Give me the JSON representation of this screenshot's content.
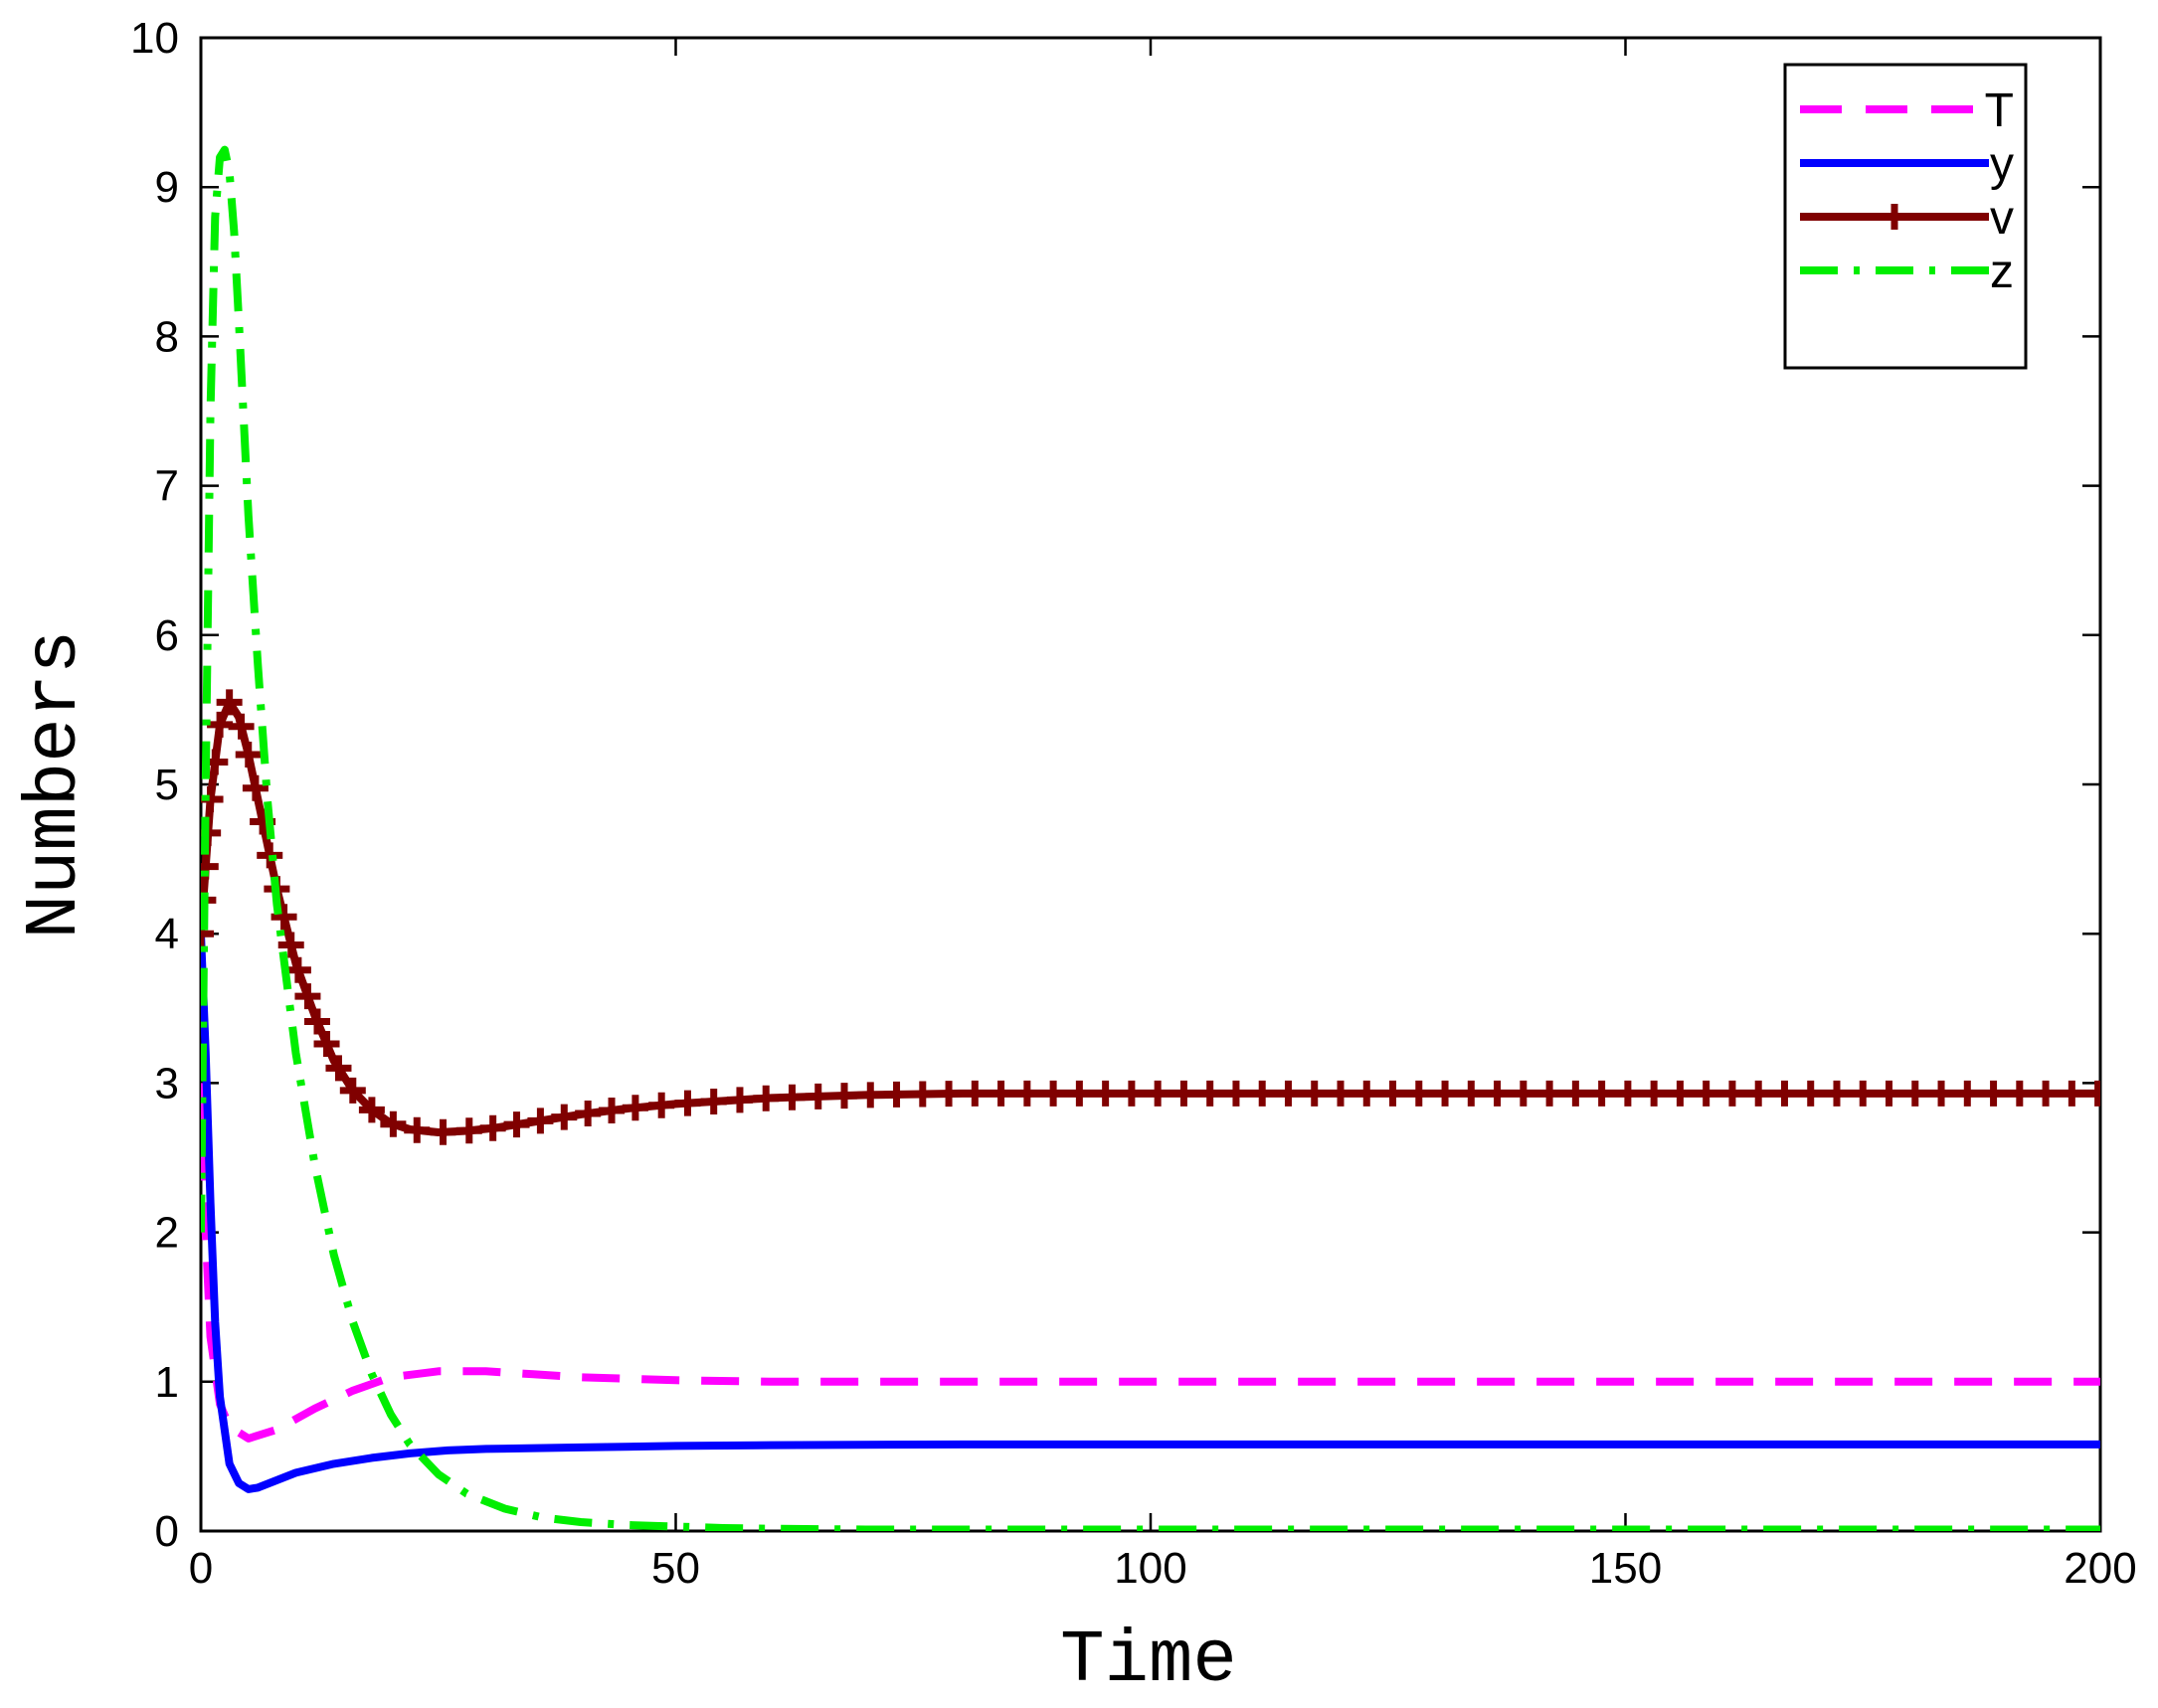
{
  "chart_data": {
    "type": "line",
    "title": "",
    "xlabel": "Time",
    "ylabel": "Numbers",
    "xlim": [
      0,
      200
    ],
    "ylim": [
      0,
      10
    ],
    "xticks": [
      0,
      50,
      100,
      150,
      200
    ],
    "yticks": [
      0,
      1,
      2,
      3,
      4,
      5,
      6,
      7,
      8,
      9,
      10
    ],
    "xtick_labels": [
      "0",
      "50",
      "100",
      "150",
      "200"
    ],
    "ytick_labels": [
      "0",
      "1",
      "2",
      "3",
      "4",
      "5",
      "6",
      "7",
      "8",
      "9",
      "10"
    ],
    "grid": false,
    "legend_position": "top-right",
    "series": [
      {
        "name": "T",
        "color": "#ff00ff",
        "style": "dashed",
        "x": [
          0,
          0.5,
          1,
          2,
          3,
          5,
          8,
          12,
          16,
          20,
          25,
          30,
          35,
          40,
          50,
          60,
          80,
          100,
          150,
          200
        ],
        "y": [
          3.0,
          2.0,
          1.3,
          0.85,
          0.7,
          0.62,
          0.68,
          0.82,
          0.94,
          1.03,
          1.07,
          1.07,
          1.05,
          1.03,
          1.01,
          1.0,
          1.0,
          1.0,
          1.0,
          1.0
        ]
      },
      {
        "name": "y",
        "color": "#0000ff",
        "style": "solid",
        "x": [
          0,
          0.5,
          1,
          1.5,
          2,
          3,
          4,
          5,
          6,
          8,
          10,
          14,
          18,
          22,
          26,
          30,
          40,
          50,
          60,
          80,
          100,
          150,
          200
        ],
        "y": [
          4.0,
          3.2,
          2.2,
          1.4,
          0.9,
          0.45,
          0.32,
          0.28,
          0.29,
          0.34,
          0.39,
          0.45,
          0.49,
          0.52,
          0.54,
          0.55,
          0.56,
          0.57,
          0.575,
          0.58,
          0.58,
          0.58,
          0.58
        ]
      },
      {
        "name": "v",
        "color": "#800000",
        "style": "solid-plus",
        "x": [
          0,
          1,
          2,
          3,
          4,
          5,
          6,
          8,
          10,
          12,
          14,
          16,
          18,
          20,
          22,
          25,
          28,
          31,
          35,
          40,
          45,
          50,
          55,
          60,
          70,
          80,
          100,
          120,
          150,
          200
        ],
        "y": [
          4.0,
          4.9,
          5.4,
          5.55,
          5.45,
          5.2,
          4.9,
          4.3,
          3.8,
          3.45,
          3.15,
          2.95,
          2.82,
          2.73,
          2.69,
          2.67,
          2.68,
          2.7,
          2.74,
          2.79,
          2.83,
          2.86,
          2.88,
          2.9,
          2.92,
          2.93,
          2.93,
          2.93,
          2.93,
          2.93
        ]
      },
      {
        "name": "z",
        "color": "#00ee00",
        "style": "dashdot",
        "x": [
          0,
          0.5,
          1,
          1.5,
          2,
          2.5,
          3,
          3.5,
          4,
          5,
          6,
          7,
          8,
          10,
          12,
          14,
          16,
          18,
          20,
          22,
          25,
          28,
          32,
          36,
          40,
          45,
          50,
          55,
          60,
          70,
          80,
          100,
          150,
          200
        ],
        "y": [
          2.0,
          5.0,
          7.5,
          8.8,
          9.2,
          9.25,
          9.1,
          8.7,
          8.1,
          6.8,
          5.8,
          4.9,
          4.2,
          3.2,
          2.45,
          1.85,
          1.4,
          1.05,
          0.78,
          0.58,
          0.38,
          0.25,
          0.15,
          0.09,
          0.06,
          0.04,
          0.03,
          0.02,
          0.015,
          0.01,
          0.01,
          0.01,
          0.01,
          0.01
        ]
      }
    ]
  }
}
